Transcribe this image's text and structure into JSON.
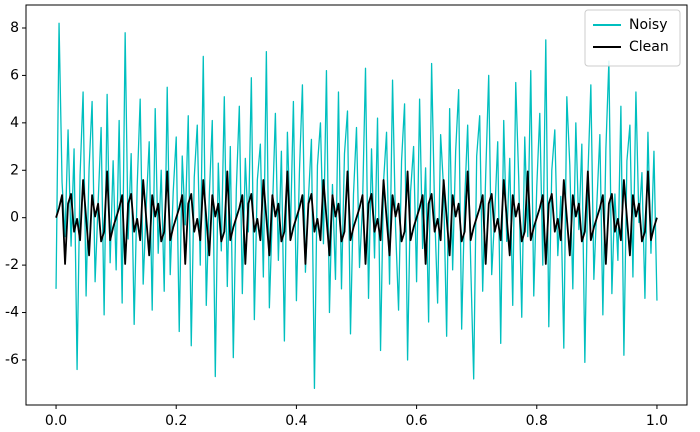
{
  "chart_data": {
    "type": "line",
    "x": [
      0,
      0.005,
      0.01,
      0.015,
      0.02,
      0.025,
      0.03,
      0.035,
      0.04,
      0.045,
      0.05,
      0.055,
      0.06,
      0.065,
      0.07,
      0.075,
      0.08,
      0.085,
      0.09,
      0.095,
      0.1,
      0.105,
      0.11,
      0.115,
      0.12,
      0.125,
      0.13,
      0.135,
      0.14,
      0.145,
      0.15,
      0.155,
      0.16,
      0.165,
      0.17,
      0.175,
      0.18,
      0.185,
      0.19,
      0.195,
      0.2,
      0.205,
      0.21,
      0.215,
      0.22,
      0.225,
      0.23,
      0.235,
      0.24,
      0.245,
      0.25,
      0.255,
      0.26,
      0.265,
      0.27,
      0.275,
      0.28,
      0.285,
      0.29,
      0.295,
      0.3,
      0.305,
      0.31,
      0.315,
      0.32,
      0.325,
      0.33,
      0.335,
      0.34,
      0.345,
      0.35,
      0.355,
      0.36,
      0.365,
      0.37,
      0.375,
      0.38,
      0.385,
      0.39,
      0.395,
      0.4,
      0.405,
      0.41,
      0.415,
      0.42,
      0.425,
      0.43,
      0.435,
      0.44,
      0.445,
      0.45,
      0.455,
      0.46,
      0.465,
      0.47,
      0.475,
      0.48,
      0.485,
      0.49,
      0.495,
      0.5,
      0.505,
      0.51,
      0.515,
      0.52,
      0.525,
      0.53,
      0.535,
      0.54,
      0.545,
      0.55,
      0.555,
      0.56,
      0.565,
      0.57,
      0.575,
      0.58,
      0.585,
      0.59,
      0.595,
      0.6,
      0.605,
      0.61,
      0.615,
      0.62,
      0.625,
      0.63,
      0.635,
      0.64,
      0.645,
      0.65,
      0.655,
      0.66,
      0.665,
      0.67,
      0.675,
      0.68,
      0.685,
      0.69,
      0.695,
      0.7,
      0.705,
      0.71,
      0.715,
      0.72,
      0.725,
      0.73,
      0.735,
      0.74,
      0.745,
      0.75,
      0.755,
      0.76,
      0.765,
      0.77,
      0.775,
      0.78,
      0.785,
      0.79,
      0.795,
      0.8,
      0.805,
      0.81,
      0.815,
      0.82,
      0.825,
      0.83,
      0.835,
      0.84,
      0.845,
      0.85,
      0.855,
      0.86,
      0.865,
      0.87,
      0.875,
      0.88,
      0.885,
      0.89,
      0.895,
      0.9,
      0.905,
      0.91,
      0.915,
      0.92,
      0.925,
      0.93,
      0.935,
      0.94,
      0.945,
      0.95,
      0.955,
      0.96,
      0.965,
      0.97,
      0.975,
      0.98,
      0.985,
      0.99,
      0.995,
      1
    ],
    "series": [
      {
        "name": "Noisy",
        "color": "#00bfbf",
        "values": [
          -3.0,
          8.2,
          1.5,
          -0.8,
          3.7,
          -1.2,
          2.9,
          -6.4,
          1.8,
          5.3,
          -3.3,
          2.1,
          4.9,
          -2.7,
          0.6,
          3.8,
          -4.1,
          5.2,
          -1.9,
          2.4,
          -2.2,
          4.1,
          -3.6,
          7.8,
          -0.9,
          2.7,
          -4.5,
          1.3,
          5.0,
          -2.8,
          0.4,
          3.2,
          -3.9,
          4.6,
          -1.5,
          2.0,
          -3.1,
          5.5,
          -2.4,
          1.1,
          3.4,
          -4.8,
          2.6,
          -0.3,
          4.3,
          -5.4,
          1.7,
          3.9,
          -2.0,
          6.8,
          -3.7,
          0.9,
          4.1,
          -6.7,
          2.3,
          -1.4,
          5.1,
          -2.9,
          3.0,
          -5.9,
          1.2,
          4.7,
          -3.2,
          2.5,
          -0.6,
          5.9,
          -4.3,
          1.6,
          3.1,
          -2.5,
          7.0,
          -3.8,
          0.2,
          4.4,
          -1.8,
          2.8,
          -5.2,
          3.6,
          -0.7,
          4.9,
          -3.5,
          1.9,
          5.6,
          -2.3,
          0.8,
          3.3,
          -7.2,
          2.2,
          4.0,
          -1.1,
          6.2,
          -4.0,
          1.4,
          -2.6,
          5.3,
          -3.0,
          2.7,
          4.5,
          -4.9,
          1.0,
          3.8,
          -2.1,
          0.5,
          6.3,
          -3.4,
          2.9,
          -1.7,
          4.2,
          -5.6,
          1.5,
          3.6,
          -2.8,
          5.8,
          -0.4,
          -3.9,
          2.4,
          4.8,
          -6.0,
          1.1,
          3.0,
          -2.7,
          5.0,
          -1.3,
          2.1,
          -4.4,
          6.5,
          0.3,
          -3.6,
          3.5,
          1.2,
          -5.0,
          4.6,
          -2.2,
          2.8,
          5.4,
          -4.7,
          0.7,
          3.9,
          -1.9,
          -6.8,
          2.6,
          4.3,
          -3.1,
          1.8,
          6.0,
          -2.4,
          0.1,
          3.2,
          -5.3,
          4.1,
          -1.0,
          2.5,
          -3.7,
          5.7,
          1.6,
          -4.2,
          3.4,
          -0.8,
          6.2,
          -3.3,
          1.3,
          4.4,
          -2.0,
          7.5,
          -4.6,
          2.0,
          3.7,
          -1.6,
          0.9,
          -5.5,
          5.1,
          2.2,
          -3.0,
          4.0,
          -0.5,
          3.1,
          -6.1,
          1.7,
          5.6,
          -2.6,
          0.6,
          3.5,
          -4.1,
          2.9,
          6.6,
          -3.2,
          1.0,
          -1.8,
          4.7,
          -5.8,
          2.4,
          3.9,
          -2.5,
          5.3,
          -0.2,
          1.9,
          -3.4,
          3.6,
          -1.5,
          2.8,
          -3.5
        ]
      },
      {
        "name": "Clean",
        "color": "#000000",
        "values": [
          0,
          0.41,
          0.95,
          -1.95,
          0.59,
          1,
          -0.59,
          -0.05,
          -0.95,
          1.59,
          0,
          -1.59,
          0.95,
          0.05,
          0.59,
          -1,
          -0.59,
          1.95,
          -0.95,
          -0.41,
          0,
          0.41,
          0.95,
          -1.95,
          0.59,
          1,
          -0.59,
          -0.05,
          -0.95,
          1.59,
          0,
          -1.59,
          0.95,
          0.05,
          0.59,
          -1,
          -0.59,
          1.95,
          -0.95,
          -0.41,
          0,
          0.41,
          0.95,
          -1.95,
          0.59,
          1,
          -0.59,
          -0.05,
          -0.95,
          1.59,
          0,
          -1.59,
          0.95,
          0.05,
          0.59,
          -1,
          -0.59,
          1.95,
          -0.95,
          -0.41,
          0,
          0.41,
          0.95,
          -1.95,
          0.59,
          1,
          -0.59,
          -0.05,
          -0.95,
          1.59,
          0,
          -1.59,
          0.95,
          0.05,
          0.59,
          -1,
          -0.59,
          1.95,
          -0.95,
          -0.41,
          0,
          0.41,
          0.95,
          -1.95,
          0.59,
          1,
          -0.59,
          -0.05,
          -0.95,
          1.59,
          0,
          -1.59,
          0.95,
          0.05,
          0.59,
          -1,
          -0.59,
          1.95,
          -0.95,
          -0.41,
          0,
          0.41,
          0.95,
          -1.95,
          0.59,
          1,
          -0.59,
          -0.05,
          -0.95,
          1.59,
          0,
          -1.59,
          0.95,
          0.05,
          0.59,
          -1,
          -0.59,
          1.95,
          -0.95,
          -0.41,
          0,
          0.41,
          0.95,
          -1.95,
          0.59,
          1,
          -0.59,
          -0.05,
          -0.95,
          1.59,
          0,
          -1.59,
          0.95,
          0.05,
          0.59,
          -1,
          -0.59,
          1.95,
          -0.95,
          -0.41,
          0,
          0.41,
          0.95,
          -1.95,
          0.59,
          1,
          -0.59,
          -0.05,
          -0.95,
          1.59,
          0,
          -1.59,
          0.95,
          0.05,
          0.59,
          -1,
          -0.59,
          1.95,
          -0.95,
          -0.41,
          0,
          0.41,
          0.95,
          -1.95,
          0.59,
          1,
          -0.59,
          -0.05,
          -0.95,
          1.59,
          0,
          -1.59,
          0.95,
          0.05,
          0.59,
          -1,
          -0.59,
          1.95,
          -0.95,
          -0.41,
          0,
          0.41,
          0.95,
          -1.95,
          0.59,
          1,
          -0.59,
          -0.05,
          -0.95,
          1.59,
          0,
          -1.59,
          0.95,
          0.05,
          0.59,
          -1,
          -0.59,
          1.95,
          -0.95,
          -0.41,
          0
        ]
      }
    ],
    "xlim": [
      -0.05,
      1.05
    ],
    "ylim": [
      -7.9,
      8.97
    ],
    "xticks": [
      {
        "value": 0,
        "label": "0.0"
      },
      0.2,
      0.4,
      0.6,
      0.8,
      {
        "value": 1,
        "label": "1.0"
      }
    ],
    "yticks": [
      -6,
      -4,
      -2,
      0,
      2,
      4,
      6,
      8
    ],
    "legend": "upper right",
    "grid": false
  }
}
